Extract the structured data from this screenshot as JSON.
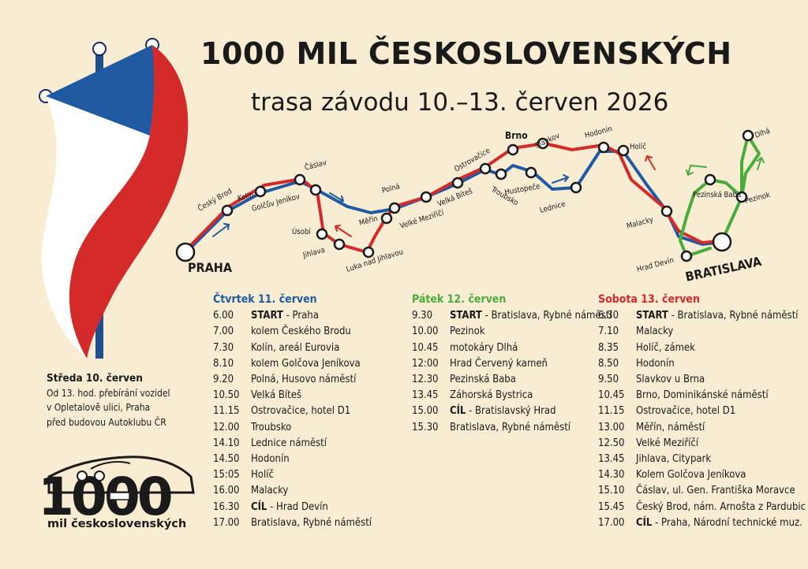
{
  "title": "1000 MIL ČESKOSLOVENSKÝCH",
  "subtitle": "trasa závodu 10.–13. červen 2026",
  "colors": {
    "blue": "#1f5aa3",
    "red": "#d42a2a",
    "green": "#4aac3a",
    "background": "#f8ecd3"
  },
  "map": {
    "start_city": "PRAHA",
    "end_city": "BRATISLAVA",
    "cities": [
      "Český Brod",
      "Kolín",
      "Čáslav",
      "Golčův Jeníkov",
      "Úsobí",
      "Jihlava",
      "Luka nad Jihlavou",
      "Měřín",
      "Polná",
      "Velké Meziříčí",
      "Velká Bíteš",
      "Ostrovačice",
      "Brno",
      "Troubsko",
      "Hustopeče",
      "Slavkov",
      "Lednice",
      "Hodonín",
      "Holíč",
      "Malacky",
      "Hrad Devín",
      "Pezinská Baba",
      "Pezinok",
      "Dlhá"
    ]
  },
  "wednesday": {
    "heading": "Středa 10. červen",
    "lines": [
      "Od 13. hod. přebírání vozidel",
      "v Opletalově ulici, Praha",
      "před budovou Autoklubu ČR"
    ]
  },
  "days": [
    {
      "heading": "Čtvrtek 11. červen",
      "color": "#1f5aa3",
      "rows": [
        {
          "time": "6.00",
          "bold": "START",
          "text": " - Praha"
        },
        {
          "time": "7.00",
          "bold": "",
          "text": "kolem Českého Brodu"
        },
        {
          "time": "7.30",
          "bold": "",
          "text": "Kolín, areál Eurovia"
        },
        {
          "time": "8.10",
          "bold": "",
          "text": "kolem Golčova Jeníkova"
        },
        {
          "time": "9.20",
          "bold": "",
          "text": "Polná, Husovo náměstí"
        },
        {
          "time": "10.50",
          "bold": "",
          "text": "Velká Bíteš"
        },
        {
          "time": "11.15",
          "bold": "",
          "text": "Ostrovačice, hotel D1"
        },
        {
          "time": "12.00",
          "bold": "",
          "text": "Troubsko"
        },
        {
          "time": "14.10",
          "bold": "",
          "text": "Lednice náměstí"
        },
        {
          "time": "14.50",
          "bold": "",
          "text": "Hodonín"
        },
        {
          "time": "15:05",
          "bold": "",
          "text": "Holíč"
        },
        {
          "time": "16.00",
          "bold": "",
          "text": "Malacky"
        },
        {
          "time": "16.30",
          "bold": "CÍL",
          "text": " - Hrad Devín"
        },
        {
          "time": "17.00",
          "bold": "",
          "text": "Bratislava, Rybné náměstí"
        }
      ]
    },
    {
      "heading": "Pátek 12. červen",
      "color": "#4aac3a",
      "rows": [
        {
          "time": "9.30",
          "bold": "START",
          "text": " - Bratislava, Rybné náměstí"
        },
        {
          "time": "10.00",
          "bold": "",
          "text": "Pezinok"
        },
        {
          "time": "10.45",
          "bold": "",
          "text": "motokáry Dlhá"
        },
        {
          "time": "12:00",
          "bold": "",
          "text": "Hrad Červený kameň"
        },
        {
          "time": "12.30",
          "bold": "",
          "text": "Pezinská Baba"
        },
        {
          "time": "13.45",
          "bold": "",
          "text": "Záhorská Bystrica"
        },
        {
          "time": "15.00",
          "bold": "CÍL",
          "text": " - Bratislavský Hrad"
        },
        {
          "time": "15.30",
          "bold": "",
          "text": "Bratislava, Rybné náměstí"
        }
      ]
    },
    {
      "heading": "Sobota 13. červen",
      "color": "#d42a2a",
      "rows": [
        {
          "time": "6.30",
          "bold": "START",
          "text": " - Bratislava, Rybné náměstí"
        },
        {
          "time": "7.10",
          "bold": "",
          "text": "Malacky"
        },
        {
          "time": "8.35",
          "bold": "",
          "text": "Holíč, zámek"
        },
        {
          "time": "8.50",
          "bold": "",
          "text": "Hodonín"
        },
        {
          "time": "9.50",
          "bold": "",
          "text": "Slavkov u Brna"
        },
        {
          "time": "10.45",
          "bold": "",
          "text": "Brno, Dominikánské náměstí"
        },
        {
          "time": "11.15",
          "bold": "",
          "text": "Ostrovačice, hotel D1"
        },
        {
          "time": "13.00",
          "bold": "",
          "text": "Měřín, náměstí"
        },
        {
          "time": "12.50",
          "bold": "",
          "text": "Velké Meziříčí"
        },
        {
          "time": "13.45",
          "bold": "",
          "text": "Jihlava, Citypark"
        },
        {
          "time": "14.30",
          "bold": "",
          "text": "Kolem Golčova Jeníkova"
        },
        {
          "time": "15.10",
          "bold": "",
          "text": "Čáslav, ul. Gen. Františka Moravce"
        },
        {
          "time": "15.45",
          "bold": "",
          "text": "Český Brod, nám. Arnošta z Pardubic"
        },
        {
          "time": "17.00",
          "bold": "CÍL",
          "text": " - Praha, Národní technické muz."
        }
      ]
    }
  ],
  "logo": {
    "number": "1000",
    "caption": "mil československých"
  }
}
